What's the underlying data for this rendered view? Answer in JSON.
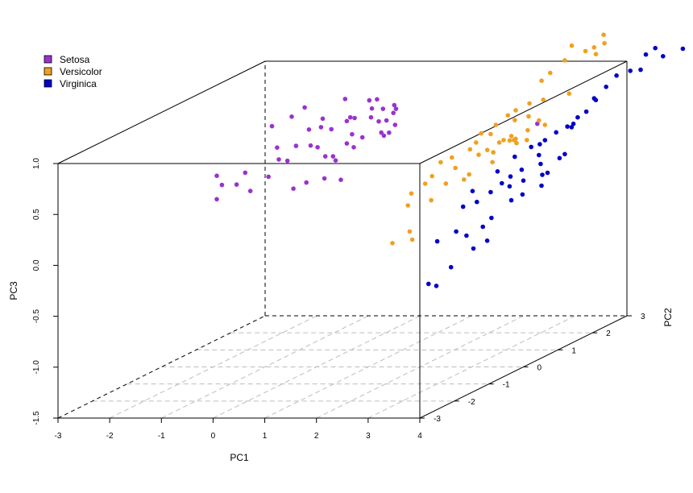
{
  "chart_data": {
    "type": "scatter3d",
    "axes": {
      "x": {
        "label": "PC1",
        "range": [
          -3,
          4
        ],
        "ticks": [
          -3,
          -2,
          -1,
          0,
          1,
          2,
          3,
          4
        ]
      },
      "y": {
        "label": "PC2",
        "range": [
          -3,
          3
        ],
        "ticks": [
          -3,
          -2,
          -1,
          0,
          1,
          2,
          3
        ]
      },
      "z": {
        "label": "PC3",
        "range": [
          -1.5,
          1.0
        ],
        "ticks": [
          -1.5,
          -1.0,
          -0.5,
          0.0,
          0.5,
          1.0
        ]
      }
    },
    "floor_grid": true,
    "legend_position": "top-left",
    "series": [
      {
        "name": "Setosa",
        "color": "#9a32cd",
        "points": [
          [
            -2.5,
            1.0,
            0.12
          ],
          [
            -2.6,
            1.0,
            -0.02
          ],
          [
            -2.6,
            1.0,
            0.21
          ],
          [
            -2.35,
            1.2,
            0.09
          ],
          [
            -1.95,
            1.0,
            0.06
          ],
          [
            -2.05,
            1.0,
            0.24
          ],
          [
            -1.8,
            1.3,
            0.15
          ],
          [
            -1.6,
            1.3,
            0.32
          ],
          [
            -1.7,
            1.4,
            0.42
          ],
          [
            -1.5,
            1.4,
            0.29
          ],
          [
            -1.25,
            1.2,
            0.05
          ],
          [
            -1.4,
            1.5,
            0.42
          ],
          [
            -2.0,
            1.7,
            0.58
          ],
          [
            -1.3,
            1.6,
            0.78
          ],
          [
            -1.55,
            1.6,
            0.69
          ],
          [
            -1.15,
            1.5,
            0.58
          ],
          [
            -1.05,
            1.4,
            0.44
          ],
          [
            -0.95,
            1.6,
            0.67
          ],
          [
            -1.0,
            1.2,
            0.11
          ],
          [
            -0.85,
            1.3,
            0.44
          ],
          [
            -0.85,
            1.4,
            0.62
          ],
          [
            -0.65,
            1.4,
            0.6
          ],
          [
            -0.7,
            1.3,
            0.35
          ],
          [
            -0.55,
            1.3,
            0.35
          ],
          [
            -0.65,
            1.2,
            0.15
          ],
          [
            -0.5,
            1.3,
            0.31
          ],
          [
            -0.4,
            1.3,
            0.12
          ],
          [
            -0.35,
            1.4,
            0.46
          ],
          [
            -0.25,
            1.4,
            0.55
          ],
          [
            -0.15,
            1.3,
            0.44
          ],
          [
            -0.35,
            1.4,
            0.68
          ],
          [
            -0.05,
            1.4,
            0.52
          ],
          [
            -0.2,
            1.4,
            0.71
          ],
          [
            -0.45,
            1.5,
            0.88
          ],
          [
            -0.35,
            1.5,
            0.7
          ],
          [
            -0.05,
            1.6,
            0.85
          ],
          [
            0.0,
            1.6,
            0.77
          ],
          [
            0.1,
            1.6,
            0.86
          ],
          [
            0.05,
            1.5,
            0.7
          ],
          [
            0.2,
            1.5,
            0.66
          ],
          [
            0.25,
            1.5,
            0.55
          ],
          [
            0.3,
            1.5,
            0.52
          ],
          [
            0.35,
            1.5,
            0.67
          ],
          [
            0.35,
            1.4,
            0.8
          ],
          [
            0.5,
            1.5,
            0.82
          ],
          [
            0.55,
            1.4,
            0.76
          ],
          [
            0.6,
            1.4,
            0.8
          ],
          [
            0.6,
            1.2,
            0.6
          ],
          [
            0.65,
            1.3,
            0.66
          ],
          [
            2.8,
            2.2,
            0.52
          ]
        ]
      },
      {
        "name": "Versicolor",
        "color": "#f0a020",
        "points": [
          [
            1.8,
            -0.5,
            -0.2
          ],
          [
            1.9,
            -0.2,
            0.12
          ],
          [
            1.9,
            -0.1,
            0.22
          ],
          [
            2.1,
            0.2,
            0.34
          ],
          [
            2.1,
            0.0,
            0.3
          ],
          [
            2.2,
            0.3,
            0.46
          ],
          [
            2.0,
            -0.3,
            -0.12
          ],
          [
            2.05,
            -0.3,
            -0.2
          ],
          [
            2.15,
            0.1,
            0.12
          ],
          [
            2.3,
            0.3,
            0.25
          ],
          [
            2.35,
            0.4,
            0.49
          ],
          [
            2.35,
            0.5,
            0.37
          ],
          [
            2.45,
            0.6,
            0.24
          ],
          [
            2.5,
            0.7,
            0.52
          ],
          [
            2.55,
            0.6,
            0.29
          ],
          [
            2.55,
            0.8,
            0.57
          ],
          [
            2.6,
            0.8,
            0.45
          ],
          [
            2.7,
            0.9,
            0.48
          ],
          [
            2.75,
            1.0,
            0.44
          ],
          [
            2.8,
            0.9,
            0.36
          ],
          [
            2.65,
            0.8,
            0.66
          ],
          [
            2.7,
            1.0,
            0.62
          ],
          [
            2.8,
            1.0,
            0.71
          ],
          [
            2.9,
            1.2,
            0.77
          ],
          [
            2.95,
            1.0,
            0.56
          ],
          [
            3.0,
            1.1,
            0.54
          ],
          [
            3.05,
            1.2,
            0.82
          ],
          [
            3.1,
            1.1,
            0.74
          ],
          [
            3.15,
            1.0,
            0.56
          ],
          [
            3.2,
            1.0,
            0.53
          ],
          [
            3.25,
            1.3,
            0.87
          ],
          [
            3.3,
            1.2,
            0.76
          ],
          [
            3.35,
            1.1,
            0.64
          ],
          [
            3.4,
            1.0,
            0.56
          ],
          [
            3.45,
            1.4,
            0.89
          ],
          [
            3.5,
            1.2,
            0.72
          ],
          [
            3.55,
            1.3,
            0.66
          ],
          [
            3.1,
            1.0,
            0.6
          ],
          [
            3.25,
            0.9,
            0.59
          ],
          [
            3.35,
            1.5,
            1.06
          ],
          [
            3.45,
            1.6,
            1.12
          ],
          [
            3.6,
            2.0,
            1.32
          ],
          [
            3.6,
            1.8,
            1.21
          ],
          [
            3.8,
            2.1,
            1.25
          ],
          [
            3.9,
            2.2,
            1.27
          ],
          [
            3.95,
            2.4,
            1.36
          ],
          [
            4.0,
            2.1,
            1.22
          ],
          [
            4.1,
            2.2,
            1.31
          ],
          [
            3.0,
            0.8,
            0.57
          ],
          [
            3.75,
            1.7,
            0.9
          ]
        ]
      },
      {
        "name": "Virginica",
        "color": "#0000c8",
        "points": [
          [
            2.6,
            -0.4,
            -0.2
          ],
          [
            2.7,
            -0.8,
            -0.55
          ],
          [
            2.85,
            -0.8,
            -0.57
          ],
          [
            3.0,
            -0.6,
            -0.42
          ],
          [
            2.9,
            -0.3,
            -0.12
          ],
          [
            3.1,
            -0.3,
            -0.16
          ],
          [
            3.3,
            -0.4,
            -0.27
          ],
          [
            3.35,
            -0.2,
            -0.09
          ],
          [
            3.5,
            -0.3,
            -0.21
          ],
          [
            3.45,
            -0.1,
            -0.02
          ],
          [
            2.9,
            -0.1,
            0.09
          ],
          [
            2.95,
            0.1,
            0.21
          ],
          [
            3.1,
            0.0,
            0.12
          ],
          [
            3.3,
            0.3,
            0.37
          ],
          [
            3.3,
            0.1,
            0.2
          ],
          [
            3.45,
            0.2,
            0.27
          ],
          [
            3.5,
            0.5,
            0.48
          ],
          [
            3.55,
            0.3,
            0.32
          ],
          [
            3.6,
            0.2,
            0.24
          ],
          [
            3.7,
            0.1,
            0.12
          ],
          [
            3.7,
            0.4,
            0.37
          ],
          [
            3.75,
            0.6,
            0.56
          ],
          [
            3.8,
            0.3,
            0.28
          ],
          [
            3.85,
            0.2,
            0.16
          ],
          [
            3.9,
            0.6,
            0.48
          ],
          [
            3.95,
            0.7,
            0.61
          ],
          [
            4.0,
            0.5,
            0.41
          ],
          [
            4.1,
            0.8,
            0.67
          ],
          [
            4.1,
            0.4,
            0.32
          ],
          [
            4.2,
            0.4,
            0.34
          ],
          [
            4.25,
            0.9,
            0.71
          ],
          [
            4.3,
            0.6,
            0.45
          ],
          [
            4.4,
            0.6,
            0.49
          ],
          [
            4.45,
            0.9,
            0.8
          ],
          [
            4.55,
            1.0,
            0.84
          ],
          [
            4.6,
            1.2,
            0.92
          ],
          [
            4.3,
            1.0,
            0.72
          ],
          [
            4.6,
            1.5,
            1.0
          ],
          [
            4.6,
            1.8,
            1.06
          ],
          [
            4.8,
            1.9,
            1.09
          ],
          [
            4.9,
            2.2,
            1.2
          ],
          [
            5.0,
            1.9,
            1.1
          ],
          [
            5.15,
            2.1,
            1.28
          ],
          [
            5.3,
            2.1,
            1.2
          ],
          [
            5.55,
            2.3,
            1.24
          ],
          [
            6.0,
            2.5,
            1.22
          ],
          [
            3.65,
            1.0,
            0.52
          ],
          [
            4.2,
            1.1,
            0.67
          ],
          [
            4.5,
            1.3,
            0.92
          ],
          [
            4.15,
            0.3,
            0.23
          ]
        ]
      }
    ]
  }
}
